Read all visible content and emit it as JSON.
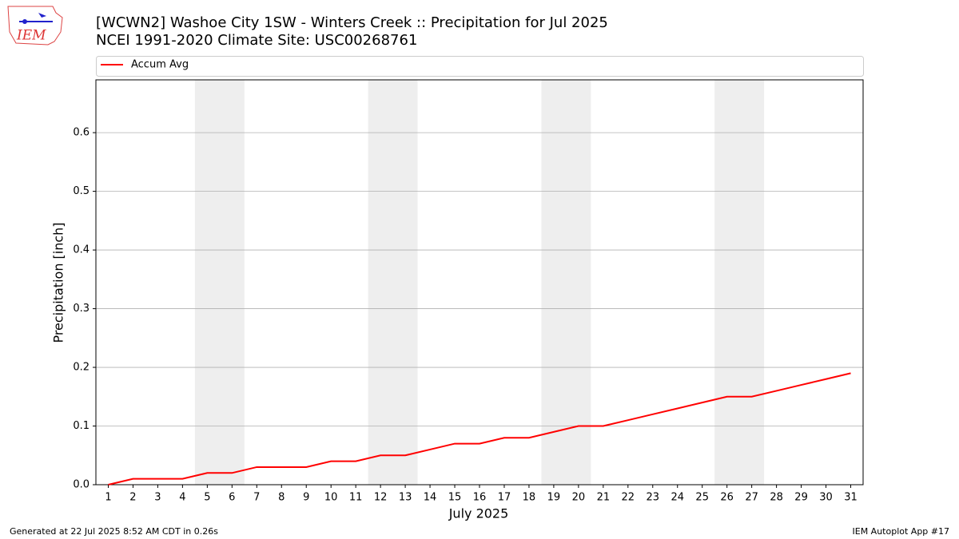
{
  "chart_data": {
    "type": "line",
    "title": "[WCWN2] Washoe City 1SW - Winters Creek :: Precipitation for Jul 2025",
    "subtitle": "NCEI 1991-2020 Climate Site: USC00268761",
    "xlabel": "July 2025",
    "ylabel": "Precipitation [inch]",
    "logo_text": "IEM",
    "footer_left": "Generated at 22 Jul 2025 8:52 AM CDT in 0.26s",
    "footer_right": "IEM Autoplot App #17",
    "x": [
      1,
      2,
      3,
      4,
      5,
      6,
      7,
      8,
      9,
      10,
      11,
      12,
      13,
      14,
      15,
      16,
      17,
      18,
      19,
      20,
      21,
      22,
      23,
      24,
      25,
      26,
      27,
      28,
      29,
      30,
      31
    ],
    "series": [
      {
        "name": "Accum Avg",
        "color": "#ff0000",
        "values": [
          0,
          0.01,
          0.01,
          0.01,
          0.02,
          0.02,
          0.03,
          0.03,
          0.03,
          0.04,
          0.04,
          0.05,
          0.05,
          0.06,
          0.07,
          0.07,
          0.08,
          0.08,
          0.09,
          0.1,
          0.1,
          0.11,
          0.12,
          0.13,
          0.14,
          0.15,
          0.15,
          0.16,
          0.17,
          0.18,
          0.19
        ]
      }
    ],
    "weekend_bands": [
      [
        5,
        6
      ],
      [
        12,
        13
      ],
      [
        19,
        20
      ],
      [
        26,
        27
      ]
    ],
    "band_color": "#eeeeee",
    "xlim": [
      0.5,
      31.5
    ],
    "ylim": [
      0,
      0.69
    ],
    "xticks": [
      1,
      2,
      3,
      4,
      5,
      6,
      7,
      8,
      9,
      10,
      11,
      12,
      13,
      14,
      15,
      16,
      17,
      18,
      19,
      20,
      21,
      22,
      23,
      24,
      25,
      26,
      27,
      28,
      29,
      30,
      31
    ],
    "yticks": [
      {
        "value": 0,
        "label": "0.0"
      },
      0.1,
      0.2,
      0.3,
      0.4,
      0.5,
      0.6
    ],
    "grid": true,
    "legend": "top"
  }
}
